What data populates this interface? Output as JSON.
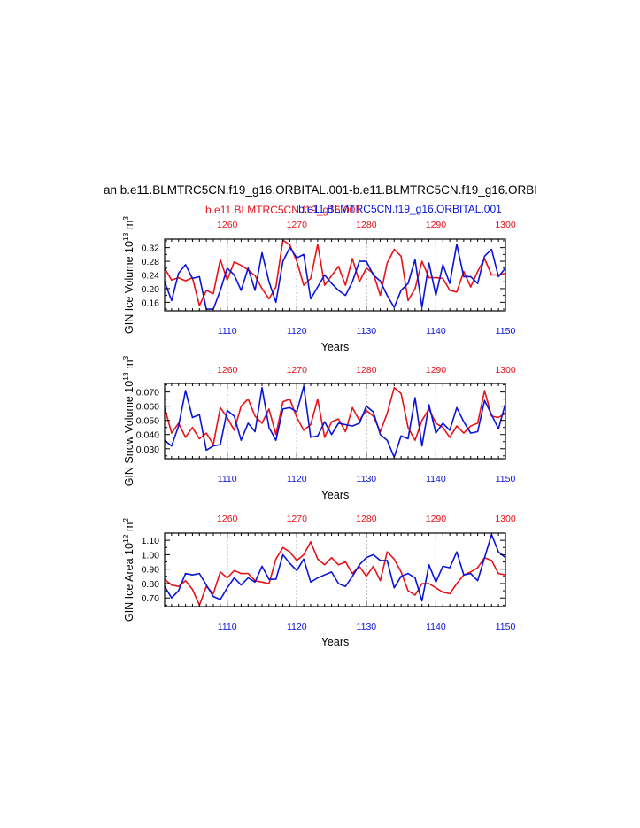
{
  "figure": {
    "title": "an b.e11.BLMTRC5CN.f19_g16.ORBITAL.001-b.e11.BLMTRC5CN.f19_g16.ORBI",
    "legend_red": "b.e11.BLMTRC5CN.f19_g16.001",
    "legend_blue": "b.e11.BLMTRC5CN.f19_g16.ORBITAL.001",
    "red_color": "#e8121a",
    "blue_color": "#0a14d8"
  },
  "chart_data": [
    {
      "type": "line",
      "ylabel_main": "GIN Ice Volume 10",
      "ylabel_exp1": "13",
      "ylabel_unit": " m",
      "ylabel_exp2": "3",
      "xlabel": "Years",
      "ylim": [
        0.135,
        0.345
      ],
      "yticks": [
        0.16,
        0.2,
        0.24,
        0.28,
        0.32
      ],
      "yticklabels": [
        "0.16",
        "0.20",
        "0.24",
        "0.28",
        "0.32"
      ],
      "bottom_xlim": [
        1101,
        1150
      ],
      "bottom_ticks": [
        1110,
        1120,
        1130,
        1140,
        1150
      ],
      "top_xlim": [
        1251,
        1300
      ],
      "top_ticks": [
        1260,
        1270,
        1280,
        1290,
        1300
      ],
      "series": [
        {
          "name": "b.e11.BLMTRC5CN.f19_g16.001",
          "axis": "top",
          "color": "#e8121a",
          "x": [
            1251,
            1252,
            1253,
            1254,
            1255,
            1256,
            1257,
            1258,
            1259,
            1260,
            1261,
            1262,
            1263,
            1264,
            1265,
            1266,
            1267,
            1268,
            1269,
            1270,
            1271,
            1272,
            1273,
            1274,
            1275,
            1276,
            1277,
            1278,
            1279,
            1280,
            1281,
            1282,
            1283,
            1284,
            1285,
            1286,
            1287,
            1288,
            1289,
            1290,
            1291,
            1292,
            1293,
            1294,
            1295,
            1296,
            1297,
            1298,
            1299,
            1300
          ],
          "values": [
            0.26,
            0.225,
            0.232,
            0.223,
            0.232,
            0.15,
            0.195,
            0.185,
            0.285,
            0.225,
            0.278,
            0.268,
            0.255,
            0.238,
            0.2,
            0.17,
            0.205,
            0.342,
            0.328,
            0.28,
            0.21,
            0.23,
            0.33,
            0.21,
            0.238,
            0.265,
            0.21,
            0.288,
            0.22,
            0.26,
            0.245,
            0.18,
            0.275,
            0.315,
            0.295,
            0.165,
            0.2,
            0.28,
            0.232,
            0.232,
            0.23,
            0.195,
            0.19,
            0.25,
            0.205,
            0.25,
            0.288,
            0.24,
            0.24,
            0.245
          ]
        },
        {
          "name": "b.e11.BLMTRC5CN.f19_g16.ORBITAL.001",
          "axis": "bottom",
          "color": "#0a14d8",
          "x": [
            1101,
            1102,
            1103,
            1104,
            1105,
            1106,
            1107,
            1108,
            1109,
            1110,
            1111,
            1112,
            1113,
            1114,
            1115,
            1116,
            1117,
            1118,
            1119,
            1120,
            1121,
            1122,
            1123,
            1124,
            1125,
            1126,
            1127,
            1128,
            1129,
            1130,
            1131,
            1132,
            1133,
            1134,
            1135,
            1136,
            1137,
            1138,
            1139,
            1140,
            1141,
            1142,
            1143,
            1144,
            1145,
            1146,
            1147,
            1148,
            1149,
            1150
          ],
          "values": [
            0.22,
            0.165,
            0.245,
            0.27,
            0.23,
            0.235,
            0.14,
            0.14,
            0.195,
            0.26,
            0.24,
            0.195,
            0.26,
            0.195,
            0.305,
            0.22,
            0.16,
            0.28,
            0.32,
            0.29,
            0.3,
            0.17,
            0.205,
            0.24,
            0.215,
            0.195,
            0.18,
            0.22,
            0.28,
            0.28,
            0.24,
            0.222,
            0.18,
            0.145,
            0.195,
            0.215,
            0.285,
            0.145,
            0.275,
            0.18,
            0.27,
            0.215,
            0.33,
            0.235,
            0.235,
            0.215,
            0.295,
            0.315,
            0.235,
            0.26
          ]
        }
      ]
    },
    {
      "type": "line",
      "ylabel_main": "GIN Snow Volume 10",
      "ylabel_exp1": "13",
      "ylabel_unit": " m",
      "ylabel_exp2": "3",
      "xlabel": "Years",
      "ylim": [
        0.023,
        0.076
      ],
      "yticks": [
        0.03,
        0.04,
        0.05,
        0.06,
        0.07
      ],
      "yticklabels": [
        "0.030",
        "0.040",
        "0.050",
        "0.060",
        "0.070"
      ],
      "bottom_xlim": [
        1101,
        1150
      ],
      "bottom_ticks": [
        1110,
        1120,
        1130,
        1140,
        1150
      ],
      "top_xlim": [
        1251,
        1300
      ],
      "top_ticks": [
        1260,
        1270,
        1280,
        1290,
        1300
      ],
      "series": [
        {
          "name": "b.e11.BLMTRC5CN.f19_g16.001",
          "axis": "top",
          "color": "#e8121a",
          "x": [
            1251,
            1252,
            1253,
            1254,
            1255,
            1256,
            1257,
            1258,
            1259,
            1260,
            1261,
            1262,
            1263,
            1264,
            1265,
            1266,
            1267,
            1268,
            1269,
            1270,
            1271,
            1272,
            1273,
            1274,
            1275,
            1276,
            1277,
            1278,
            1279,
            1280,
            1281,
            1282,
            1283,
            1284,
            1285,
            1286,
            1287,
            1288,
            1289,
            1290,
            1291,
            1292,
            1293,
            1294,
            1295,
            1296,
            1297,
            1298,
            1299,
            1300
          ],
          "values": [
            0.059,
            0.041,
            0.048,
            0.038,
            0.045,
            0.037,
            0.041,
            0.033,
            0.059,
            0.052,
            0.043,
            0.06,
            0.065,
            0.053,
            0.048,
            0.058,
            0.04,
            0.063,
            0.065,
            0.052,
            0.043,
            0.047,
            0.065,
            0.038,
            0.049,
            0.051,
            0.042,
            0.059,
            0.05,
            0.057,
            0.053,
            0.042,
            0.055,
            0.073,
            0.069,
            0.045,
            0.036,
            0.05,
            0.058,
            0.048,
            0.045,
            0.038,
            0.046,
            0.041,
            0.046,
            0.048,
            0.071,
            0.053,
            0.052,
            0.055
          ]
        },
        {
          "name": "b.e11.BLMTRC5CN.f19_g16.ORBITAL.001",
          "axis": "bottom",
          "color": "#0a14d8",
          "x": [
            1101,
            1102,
            1103,
            1104,
            1105,
            1106,
            1107,
            1108,
            1109,
            1110,
            1111,
            1112,
            1113,
            1114,
            1115,
            1116,
            1117,
            1118,
            1119,
            1120,
            1121,
            1122,
            1123,
            1124,
            1125,
            1126,
            1127,
            1128,
            1129,
            1130,
            1131,
            1132,
            1133,
            1134,
            1135,
            1136,
            1137,
            1138,
            1139,
            1140,
            1141,
            1142,
            1143,
            1144,
            1145,
            1146,
            1147,
            1148,
            1149,
            1150
          ],
          "values": [
            0.036,
            0.032,
            0.046,
            0.071,
            0.052,
            0.054,
            0.029,
            0.032,
            0.033,
            0.057,
            0.053,
            0.036,
            0.048,
            0.042,
            0.073,
            0.045,
            0.036,
            0.058,
            0.059,
            0.056,
            0.074,
            0.038,
            0.039,
            0.049,
            0.04,
            0.048,
            0.047,
            0.046,
            0.048,
            0.06,
            0.056,
            0.04,
            0.036,
            0.024,
            0.039,
            0.037,
            0.066,
            0.032,
            0.061,
            0.041,
            0.048,
            0.043,
            0.059,
            0.049,
            0.041,
            0.042,
            0.064,
            0.054,
            0.044,
            0.062
          ]
        }
      ]
    },
    {
      "type": "line",
      "ylabel_main": "GIN Ice Area 10",
      "ylabel_exp1": "12",
      "ylabel_unit": " m",
      "ylabel_exp2": "2",
      "xlabel": "Years",
      "ylim": [
        0.64,
        1.15
      ],
      "yticks": [
        0.7,
        0.8,
        0.9,
        1.0,
        1.1
      ],
      "yticklabels": [
        "0.70",
        "0.80",
        "0.90",
        "1.00",
        "1.10"
      ],
      "bottom_xlim": [
        1101,
        1150
      ],
      "bottom_ticks": [
        1110,
        1120,
        1130,
        1140,
        1150
      ],
      "top_xlim": [
        1251,
        1300
      ],
      "top_ticks": [
        1260,
        1270,
        1280,
        1290,
        1300
      ],
      "series": [
        {
          "name": "b.e11.BLMTRC5CN.f19_g16.001",
          "axis": "top",
          "color": "#e8121a",
          "x": [
            1251,
            1252,
            1253,
            1254,
            1255,
            1256,
            1257,
            1258,
            1259,
            1260,
            1261,
            1262,
            1263,
            1264,
            1265,
            1266,
            1267,
            1268,
            1269,
            1270,
            1271,
            1272,
            1273,
            1274,
            1275,
            1276,
            1277,
            1278,
            1279,
            1280,
            1281,
            1282,
            1283,
            1284,
            1285,
            1286,
            1287,
            1288,
            1289,
            1290,
            1291,
            1292,
            1293,
            1294,
            1295,
            1296,
            1297,
            1298,
            1299,
            1300
          ],
          "values": [
            0.83,
            0.79,
            0.78,
            0.82,
            0.76,
            0.65,
            0.78,
            0.73,
            0.88,
            0.84,
            0.89,
            0.87,
            0.87,
            0.82,
            0.81,
            0.8,
            0.97,
            1.05,
            1.02,
            0.96,
            1.0,
            1.09,
            0.97,
            0.93,
            0.98,
            0.93,
            0.95,
            0.87,
            0.92,
            0.85,
            0.92,
            0.82,
            1.02,
            0.97,
            0.88,
            0.75,
            0.72,
            0.8,
            0.8,
            0.77,
            0.74,
            0.73,
            0.8,
            0.86,
            0.88,
            0.91,
            0.98,
            0.96,
            0.87,
            0.86
          ]
        },
        {
          "name": "b.e11.BLMTRC5CN.f19_g16.ORBITAL.001",
          "axis": "bottom",
          "color": "#0a14d8",
          "x": [
            1101,
            1102,
            1103,
            1104,
            1105,
            1106,
            1107,
            1108,
            1109,
            1110,
            1111,
            1112,
            1113,
            1114,
            1115,
            1116,
            1117,
            1118,
            1119,
            1120,
            1121,
            1122,
            1123,
            1124,
            1125,
            1126,
            1127,
            1128,
            1129,
            1130,
            1131,
            1132,
            1133,
            1134,
            1135,
            1136,
            1137,
            1138,
            1139,
            1140,
            1141,
            1142,
            1143,
            1144,
            1145,
            1146,
            1147,
            1148,
            1149,
            1150
          ],
          "values": [
            0.78,
            0.7,
            0.75,
            0.87,
            0.86,
            0.87,
            0.79,
            0.71,
            0.69,
            0.77,
            0.84,
            0.79,
            0.84,
            0.81,
            0.92,
            0.83,
            0.83,
            1.0,
            0.94,
            0.89,
            0.97,
            0.81,
            0.84,
            0.86,
            0.88,
            0.8,
            0.78,
            0.85,
            0.93,
            0.98,
            1.0,
            0.96,
            0.96,
            0.77,
            0.85,
            0.87,
            0.84,
            0.68,
            0.93,
            0.81,
            0.92,
            0.91,
            1.02,
            0.86,
            0.87,
            0.82,
            0.98,
            1.14,
            1.02,
            0.98
          ]
        }
      ]
    }
  ]
}
